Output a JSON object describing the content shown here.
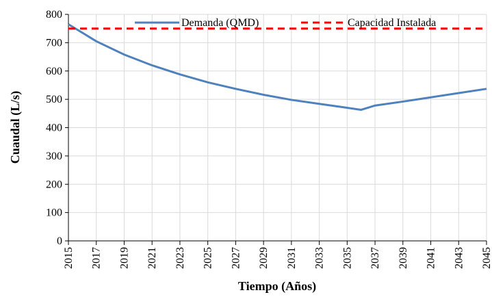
{
  "chart_data": {
    "type": "line",
    "x": [
      2015,
      2017,
      2019,
      2021,
      2023,
      2025,
      2027,
      2029,
      2031,
      2033,
      2035,
      2036,
      2037,
      2039,
      2041,
      2043,
      2045
    ],
    "series": [
      {
        "name": "Demanda (QMD)",
        "color": "#4f81bd",
        "dash": false,
        "values": [
          765,
          705,
          658,
          620,
          588,
          560,
          537,
          516,
          498,
          484,
          470,
          463,
          478,
          492,
          507,
          522,
          537
        ]
      },
      {
        "name": "Capacidad Instalada",
        "color": "#ff0000",
        "dash": true,
        "values": [
          750,
          750,
          750,
          750,
          750,
          750,
          750,
          750,
          750,
          750,
          750,
          750,
          750,
          750,
          750,
          750,
          750
        ]
      }
    ],
    "xlabel": "Tiempo (Años)",
    "ylabel": "Cuaudal (L/s)",
    "xlim": [
      2015,
      2045
    ],
    "xticks": [
      2015,
      2017,
      2019,
      2021,
      2023,
      2025,
      2027,
      2029,
      2031,
      2033,
      2035,
      2037,
      2039,
      2041,
      2043,
      2045
    ],
    "ylim": [
      0,
      800
    ],
    "yticks": [
      0,
      100,
      200,
      300,
      400,
      500,
      600,
      700,
      800
    ],
    "grid": true,
    "legend": "top"
  }
}
